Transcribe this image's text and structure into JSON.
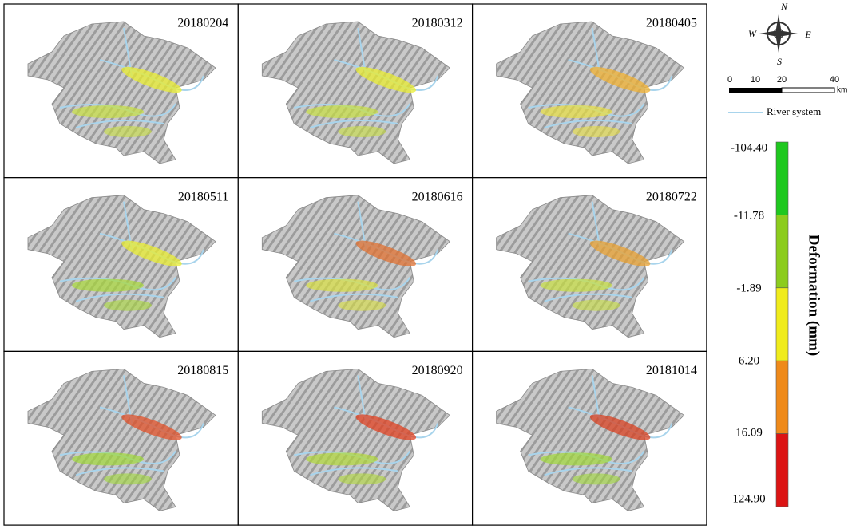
{
  "panels": [
    {
      "label": "20180204"
    },
    {
      "label": "20180312"
    },
    {
      "label": "20180405"
    },
    {
      "label": "20180511"
    },
    {
      "label": "20180616"
    },
    {
      "label": "20180722"
    },
    {
      "label": "20180815"
    },
    {
      "label": "20180920"
    },
    {
      "label": "20181014"
    }
  ],
  "compass": {
    "north": "N",
    "east": "E",
    "south": "S",
    "west": "W"
  },
  "scale_bar": {
    "ticks": [
      "0",
      "10",
      "20",
      "40"
    ],
    "unit": "km"
  },
  "legend": {
    "river": "River system"
  },
  "colorbar": {
    "title": "Deformation (mm)",
    "labels": [
      "-104.40",
      "-11.78",
      "-1.89",
      "6.20",
      "16.09",
      "124.90"
    ],
    "colors": [
      "#1fc81f",
      "#8ccc1e",
      "#f0ec1c",
      "#ef8a1a",
      "#dc1414"
    ]
  }
}
